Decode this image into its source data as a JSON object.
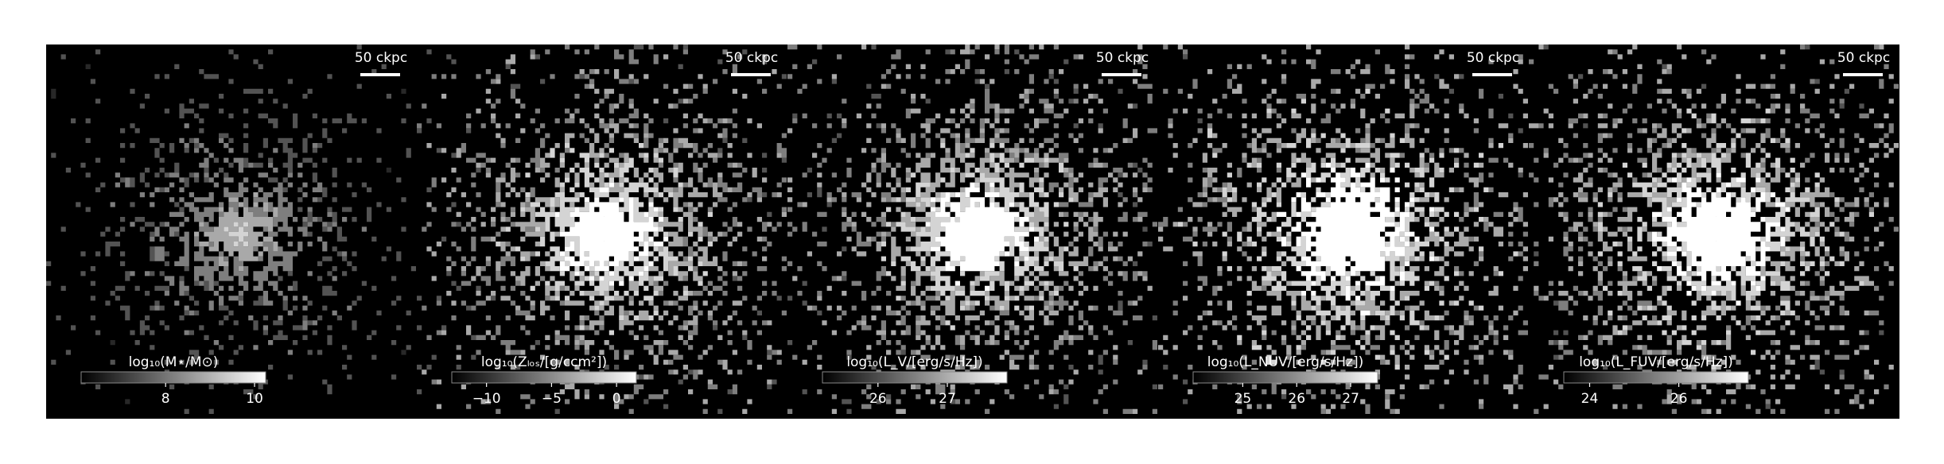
{
  "chart_data": [
    {
      "type": "image",
      "scalebar_label": "50 ckpc",
      "colorbar_label": "log₁₀(M⋆/M⊙)",
      "clim": [
        6.1,
        10.25
      ],
      "cticks": [
        8,
        10
      ]
    },
    {
      "type": "image",
      "scalebar_label": "50 ckpc",
      "colorbar_label": "log₁₀(Zₗₒₛ/[g/ccm²])",
      "clim": [
        -12.67,
        1.52
      ],
      "cticks": [
        {
          "value": -10,
          "label": "−10"
        },
        {
          "value": -5,
          "label": "−5"
        },
        0
      ]
    },
    {
      "type": "image",
      "scalebar_label": "50 ckpc",
      "colorbar_label": "log₁₀(L_V/[erg/s/Hz])",
      "clim": [
        25.2,
        27.86
      ],
      "cticks": [
        26,
        27
      ]
    },
    {
      "type": "image",
      "scalebar_label": "50 ckpc",
      "colorbar_label": "log₁₀(L_NUV/[erg/s/Hz])",
      "clim": [
        24.08,
        27.5
      ],
      "cticks": [
        25,
        26,
        27
      ]
    },
    {
      "type": "image",
      "scalebar_label": "50 ckpc",
      "colorbar_label": "log₁₀(L_FUV/[erg/s/Hz])",
      "clim": [
        23.42,
        27.56
      ],
      "cticks": [
        24,
        26
      ]
    }
  ]
}
